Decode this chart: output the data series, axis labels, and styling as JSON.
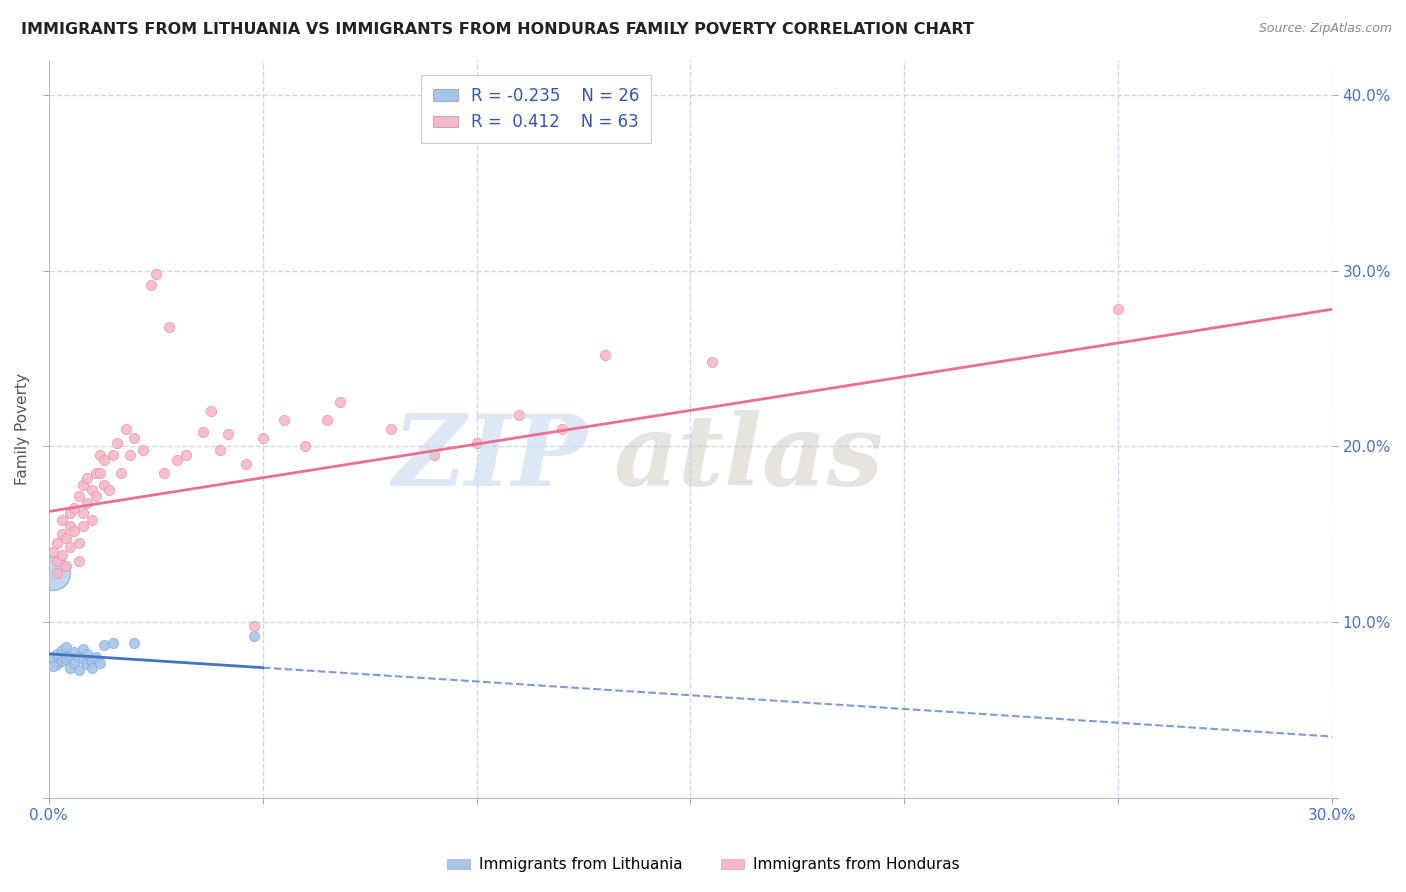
{
  "title": "IMMIGRANTS FROM LITHUANIA VS IMMIGRANTS FROM HONDURAS FAMILY POVERTY CORRELATION CHART",
  "source": "Source: ZipAtlas.com",
  "ylabel": "Family Poverty",
  "xlim": [
    0.0,
    0.3
  ],
  "ylim": [
    0.0,
    0.42
  ],
  "xticks": [
    0.0,
    0.05,
    0.1,
    0.15,
    0.2,
    0.25,
    0.3
  ],
  "yticks": [
    0.0,
    0.1,
    0.2,
    0.3,
    0.4
  ],
  "xtick_labels_show": [
    "0.0%",
    "30.0%"
  ],
  "ytick_labels_show": [
    "10.0%",
    "20.0%",
    "30.0%",
    "40.0%"
  ],
  "blue_color": "#a8c4e8",
  "blue_edge_color": "#7aadd4",
  "pink_color": "#f4b8c8",
  "pink_edge_color": "#e8909f",
  "blue_line_color": "#4472c4",
  "pink_line_color": "#e87090",
  "grid_color": "#c8d8ec",
  "bg_color": "#ffffff",
  "title_color": "#222222",
  "axis_label_color": "#555555",
  "blue_scatter": [
    [
      0.001,
      0.08
    ],
    [
      0.002,
      0.082
    ],
    [
      0.002,
      0.076
    ],
    [
      0.003,
      0.078
    ],
    [
      0.003,
      0.084
    ],
    [
      0.004,
      0.079
    ],
    [
      0.004,
      0.086
    ],
    [
      0.005,
      0.074
    ],
    [
      0.005,
      0.081
    ],
    [
      0.006,
      0.077
    ],
    [
      0.006,
      0.083
    ],
    [
      0.007,
      0.08
    ],
    [
      0.007,
      0.073
    ],
    [
      0.008,
      0.085
    ],
    [
      0.008,
      0.079
    ],
    [
      0.009,
      0.076
    ],
    [
      0.009,
      0.082
    ],
    [
      0.01,
      0.078
    ],
    [
      0.01,
      0.074
    ],
    [
      0.011,
      0.08
    ],
    [
      0.012,
      0.077
    ],
    [
      0.013,
      0.087
    ],
    [
      0.015,
      0.088
    ],
    [
      0.02,
      0.088
    ],
    [
      0.048,
      0.092
    ],
    [
      0.001,
      0.075
    ]
  ],
  "blue_large_point": [
    0.001,
    0.128
  ],
  "blue_large_size": 600,
  "pink_scatter": [
    [
      0.001,
      0.14
    ],
    [
      0.002,
      0.128
    ],
    [
      0.002,
      0.135
    ],
    [
      0.002,
      0.145
    ],
    [
      0.003,
      0.138
    ],
    [
      0.003,
      0.15
    ],
    [
      0.003,
      0.158
    ],
    [
      0.004,
      0.132
    ],
    [
      0.004,
      0.148
    ],
    [
      0.005,
      0.155
    ],
    [
      0.005,
      0.143
    ],
    [
      0.005,
      0.162
    ],
    [
      0.006,
      0.152
    ],
    [
      0.006,
      0.165
    ],
    [
      0.007,
      0.145
    ],
    [
      0.007,
      0.135
    ],
    [
      0.007,
      0.172
    ],
    [
      0.008,
      0.162
    ],
    [
      0.008,
      0.155
    ],
    [
      0.008,
      0.178
    ],
    [
      0.009,
      0.168
    ],
    [
      0.009,
      0.182
    ],
    [
      0.01,
      0.175
    ],
    [
      0.01,
      0.158
    ],
    [
      0.011,
      0.185
    ],
    [
      0.011,
      0.172
    ],
    [
      0.012,
      0.195
    ],
    [
      0.012,
      0.185
    ],
    [
      0.013,
      0.178
    ],
    [
      0.013,
      0.192
    ],
    [
      0.014,
      0.175
    ],
    [
      0.015,
      0.195
    ],
    [
      0.016,
      0.202
    ],
    [
      0.017,
      0.185
    ],
    [
      0.018,
      0.21
    ],
    [
      0.019,
      0.195
    ],
    [
      0.02,
      0.205
    ],
    [
      0.022,
      0.198
    ],
    [
      0.024,
      0.292
    ],
    [
      0.025,
      0.298
    ],
    [
      0.027,
      0.185
    ],
    [
      0.028,
      0.268
    ],
    [
      0.03,
      0.192
    ],
    [
      0.032,
      0.195
    ],
    [
      0.036,
      0.208
    ],
    [
      0.038,
      0.22
    ],
    [
      0.04,
      0.198
    ],
    [
      0.042,
      0.207
    ],
    [
      0.046,
      0.19
    ],
    [
      0.05,
      0.205
    ],
    [
      0.055,
      0.215
    ],
    [
      0.06,
      0.2
    ],
    [
      0.065,
      0.215
    ],
    [
      0.068,
      0.225
    ],
    [
      0.08,
      0.21
    ],
    [
      0.09,
      0.195
    ],
    [
      0.1,
      0.202
    ],
    [
      0.11,
      0.218
    ],
    [
      0.12,
      0.21
    ],
    [
      0.13,
      0.252
    ],
    [
      0.155,
      0.248
    ],
    [
      0.048,
      0.098
    ],
    [
      0.25,
      0.278
    ]
  ],
  "watermark_zip_color": "#c8d8f0",
  "watermark_atlas_color": "#d0c8c0"
}
